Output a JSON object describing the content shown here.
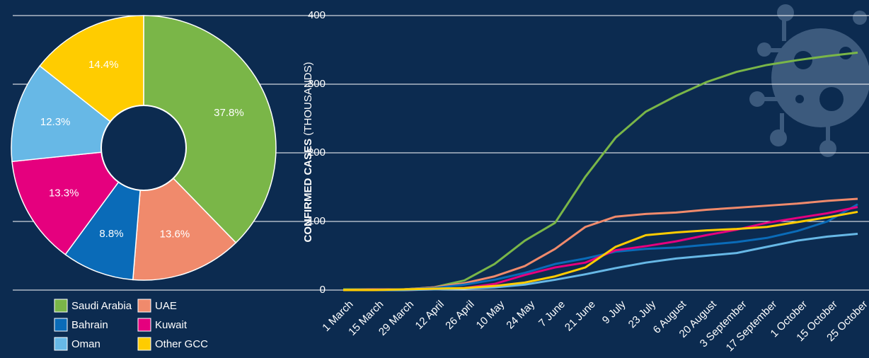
{
  "chart_data": [
    {
      "type": "pie",
      "categories": [
        "Saudi Arabia",
        "UAE",
        "Bahrain",
        "Kuwait",
        "Oman",
        "Other GCC"
      ],
      "values": [
        37.8,
        13.6,
        8.8,
        13.3,
        12.3,
        14.4
      ],
      "value_labels": [
        "37.8%",
        "13.6%",
        "8.8%",
        "13.3%",
        "12.3%",
        "14.4%"
      ],
      "colors": [
        "#7ab648",
        "#f08a6c",
        "#0a6bb8",
        "#e5007e",
        "#67b8e6",
        "#ffcc00"
      ]
    },
    {
      "type": "line",
      "y_label": [
        "CONFIRMED CASES",
        "(THOUSANDS)"
      ],
      "categories": [
        "1 March",
        "15 March",
        "29 March",
        "12 April",
        "26 April",
        "10 May",
        "24 May",
        "7 June",
        "21 June",
        "9 July",
        "23 July",
        "6 August",
        "20 August",
        "3 September",
        "17 September",
        "1 October",
        "15 October",
        "25 October"
      ],
      "series": [
        {
          "name": "Saudi Arabia",
          "color": "#7ab648",
          "values": [
            1,
            1,
            1,
            4,
            14,
            38,
            72,
            98,
            165,
            222,
            260,
            283,
            303,
            318,
            328,
            335,
            341,
            346
          ]
        },
        {
          "name": "UAE",
          "color": "#f08a6c",
          "values": [
            0,
            1,
            1,
            4,
            10,
            20,
            35,
            60,
            92,
            107,
            111,
            113,
            117,
            120,
            123,
            126,
            130,
            133
          ]
        },
        {
          "name": "Bahrain",
          "color": "#0a6bb8",
          "values": [
            0,
            0,
            1,
            3,
            8,
            15,
            25,
            38,
            46,
            56,
            60,
            62,
            66,
            70,
            76,
            86,
            100,
            125
          ]
        },
        {
          "name": "Kuwait",
          "color": "#e5007e",
          "values": [
            0,
            0,
            0,
            1,
            3,
            9,
            22,
            33,
            40,
            58,
            64,
            71,
            80,
            88,
            98,
            105,
            112,
            121
          ]
        },
        {
          "name": "Oman",
          "color": "#67b8e6",
          "values": [
            0,
            0,
            0,
            1,
            2,
            4,
            8,
            15,
            23,
            32,
            40,
            46,
            50,
            54,
            63,
            72,
            78,
            82
          ]
        },
        {
          "name": "Other GCC",
          "color": "#ffcc00",
          "values": [
            0,
            0,
            1,
            2,
            3,
            6,
            11,
            20,
            33,
            63,
            80,
            84,
            87,
            89,
            92,
            99,
            106,
            114
          ]
        }
      ],
      "ylim": [
        0,
        400
      ],
      "yticks": [
        0,
        100,
        200,
        300,
        400
      ],
      "grid": true
    }
  ]
}
